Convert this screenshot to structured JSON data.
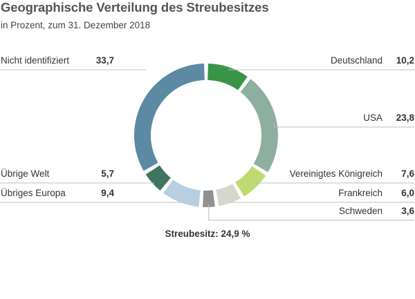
{
  "chart_data": {
    "type": "pie",
    "style": "donut",
    "title": "Geographische Verteilung des Streubesitzes",
    "subtitle": "in Prozent, zum 31. Dezember 2018",
    "footer": "Streubesitz: 24,9 %",
    "legend": "none",
    "grid": false,
    "slices": [
      {
        "label": "Deutschland",
        "value": 10.2,
        "display": "10,2",
        "color": "#3a9448"
      },
      {
        "label": "USA",
        "value": 23.8,
        "display": "23,8",
        "color": "#8eaf9f"
      },
      {
        "label": "Vereinigtes Königreich",
        "value": 7.6,
        "display": "7,6",
        "color": "#bfda72"
      },
      {
        "label": "Frankreich",
        "value": 6.0,
        "display": "6,0",
        "color": "#d4d7cc"
      },
      {
        "label": "Schweden",
        "value": 3.6,
        "display": "3,6",
        "color": "#919191"
      },
      {
        "label": "Übriges Europa",
        "value": 9.4,
        "display": "9,4",
        "color": "#b7cfe0"
      },
      {
        "label": "Übrige Welt",
        "value": 5.7,
        "display": "5,7",
        "color": "#3f755e"
      },
      {
        "label": "Nicht identifiziert",
        "value": 33.7,
        "display": "33,7",
        "color": "#5b8aa2"
      }
    ]
  }
}
